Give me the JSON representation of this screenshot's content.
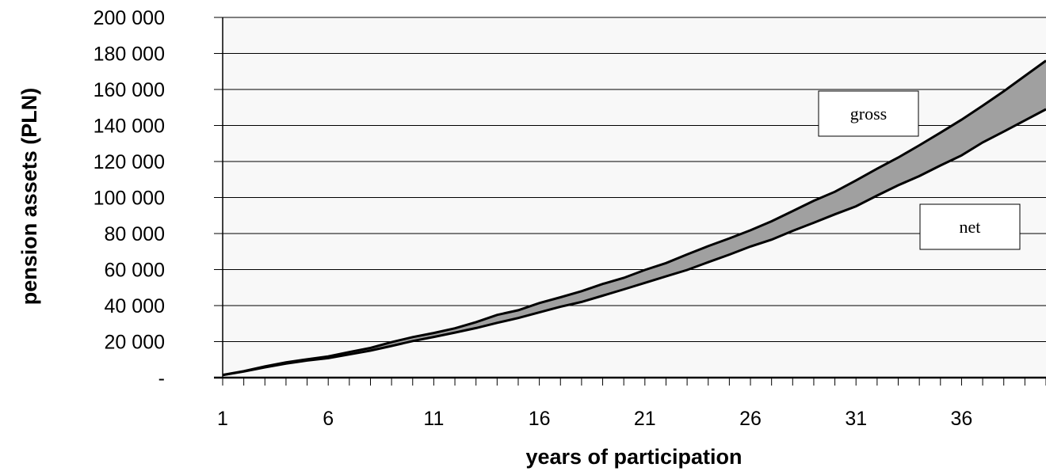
{
  "chart_data": {
    "type": "area",
    "xlabel": "years of participation",
    "ylabel": "pension assets (PLN)",
    "x": [
      1,
      2,
      3,
      4,
      5,
      6,
      7,
      8,
      9,
      10,
      11,
      12,
      13,
      14,
      15,
      16,
      17,
      18,
      19,
      20,
      21,
      22,
      23,
      24,
      25,
      26,
      27,
      28,
      29,
      30,
      31,
      32,
      33,
      34,
      35,
      36,
      37,
      38,
      39,
      40
    ],
    "xticks": [
      1,
      6,
      11,
      16,
      21,
      26,
      31,
      36
    ],
    "xtick_labels": [
      "1",
      "6",
      "11",
      "16",
      "21",
      "26",
      "31",
      "36"
    ],
    "xlim": [
      1,
      40
    ],
    "ylim": [
      0,
      200000
    ],
    "yticks": [
      0,
      20000,
      40000,
      60000,
      80000,
      100000,
      120000,
      140000,
      160000,
      180000,
      200000
    ],
    "ytick_labels": [
      "-",
      "20 000",
      "40 000",
      "60 000",
      "80 000",
      "100 000",
      "120 000",
      "140 000",
      "160 000",
      "180 000",
      "200 000"
    ],
    "grid": true,
    "series": [
      {
        "name": "gross",
        "values": [
          1500,
          3600,
          6200,
          8500,
          10200,
          11800,
          14200,
          16500,
          19700,
          22500,
          24800,
          27400,
          30800,
          34800,
          37400,
          41400,
          44600,
          48000,
          52000,
          55400,
          59800,
          63600,
          68400,
          73000,
          77300,
          81800,
          86800,
          92500,
          98200,
          103200,
          109500,
          116000,
          122200,
          129000,
          136000,
          143200,
          151000,
          159000,
          167500,
          176000
        ]
      },
      {
        "name": "net",
        "values": [
          1400,
          3400,
          5700,
          7800,
          9500,
          10800,
          12900,
          15000,
          17600,
          20300,
          22600,
          25000,
          27500,
          30400,
          33100,
          36200,
          39400,
          42000,
          45500,
          49000,
          52600,
          56200,
          59800,
          64100,
          68300,
          72800,
          76600,
          81500,
          86000,
          90700,
          95100,
          101100,
          106800,
          111900,
          117800,
          123400,
          130600,
          136600,
          142800,
          149000
        ]
      }
    ],
    "annotations": [
      {
        "text": "gross"
      },
      {
        "text": "net"
      }
    ],
    "colors": {
      "band": "#a0a0a0",
      "plot_bg": "#f8f8f8",
      "line": "#000000"
    }
  }
}
